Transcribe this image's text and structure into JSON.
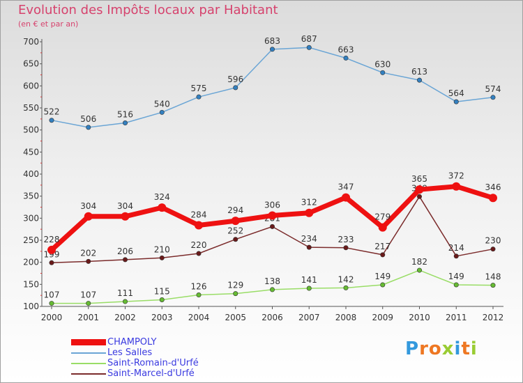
{
  "chart_data": {
    "type": "line",
    "title": "Evolution des Impôts locaux par Habitant",
    "subtitle": "(en € et par an)",
    "xlabel": "",
    "ylabel": "",
    "categories": [
      "2000",
      "2001",
      "2002",
      "2003",
      "2004",
      "2005",
      "2006",
      "2007",
      "2008",
      "2009",
      "2010",
      "2011",
      "2012"
    ],
    "ylim": [
      100,
      700
    ],
    "yticks": [
      100,
      150,
      200,
      250,
      300,
      350,
      400,
      450,
      500,
      550,
      600,
      650,
      700
    ],
    "grid": false,
    "legend_position": "bottom-left",
    "series": [
      {
        "name": "Saint-Romain-d'Urfé",
        "color": "#99dd66",
        "marker": "#66bb33",
        "values": [
          107,
          107,
          111,
          115,
          126,
          129,
          138,
          141,
          142,
          149,
          182,
          149,
          148
        ]
      },
      {
        "name": "Saint-Marcel-d'Urfé",
        "color": "#7b2b2b",
        "marker": "#6a1a1a",
        "values": [
          199,
          202,
          206,
          210,
          220,
          252,
          281,
          234,
          233,
          217,
          349,
          214,
          230
        ]
      },
      {
        "name": "Les Salles",
        "color": "#6aa5d5",
        "marker": "#3380c0",
        "values": [
          522,
          506,
          516,
          540,
          575,
          596,
          683,
          687,
          663,
          630,
          613,
          564,
          574
        ]
      },
      {
        "name": "CHAMPOLY",
        "color": "#ee1111",
        "marker": "#ee1111",
        "values": [
          228,
          304,
          304,
          324,
          284,
          294,
          306,
          312,
          347,
          279,
          365,
          372,
          346
        ]
      }
    ],
    "legend": [
      "CHAMPOLY",
      "Les Salles",
      "Saint-Romain-d'Urfé",
      "Saint-Marcel-d'Urfé"
    ]
  },
  "logo": {
    "letters": [
      {
        "char": "P",
        "color": "#3399dd"
      },
      {
        "char": "r",
        "color": "#ee7722"
      },
      {
        "char": "o",
        "color": "#ee7722"
      },
      {
        "char": "x",
        "color": "#99cc33"
      },
      {
        "char": "i",
        "color": "#3399dd"
      },
      {
        "char": "t",
        "color": "#ee7722"
      },
      {
        "char": "i",
        "color": "#99cc33"
      }
    ]
  }
}
